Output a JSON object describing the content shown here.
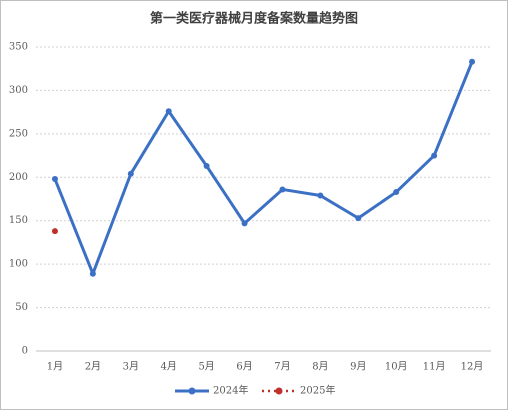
{
  "chart_data": {
    "type": "line",
    "title": "第一类医疗器械月度备案数量趋势图",
    "categories": [
      "1月",
      "2月",
      "3月",
      "4月",
      "5月",
      "6月",
      "7月",
      "8月",
      "9月",
      "10月",
      "11月",
      "12月"
    ],
    "series": [
      {
        "name": "2024年",
        "color": "#3b70c4",
        "values": [
          198,
          89,
          204,
          276,
          213,
          147,
          186,
          179,
          153,
          183,
          225,
          333
        ]
      },
      {
        "name": "2025年",
        "color": "#c0302b",
        "values": [
          138,
          null,
          null,
          null,
          null,
          null,
          null,
          null,
          null,
          null,
          null,
          null
        ]
      }
    ],
    "ylim": [
      0,
      350
    ],
    "yticks": [
      0,
      50,
      100,
      150,
      200,
      250,
      300,
      350
    ],
    "grid": true,
    "legend": "bottom"
  }
}
